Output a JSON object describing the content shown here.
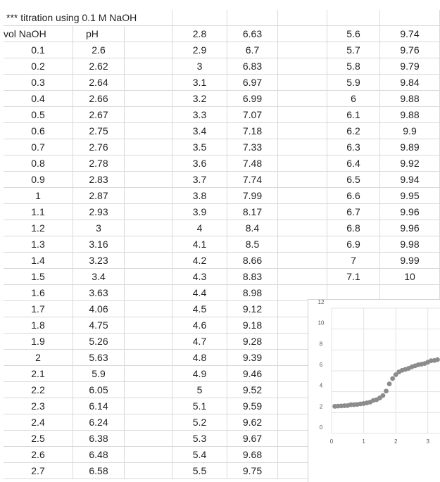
{
  "sheet": {
    "title": "*** titration using 0.1 M NaOH",
    "headers": {
      "vol": "vol NaOH",
      "ph": "pH"
    },
    "block1": [
      [
        "0.1",
        "2.6"
      ],
      [
        "0.2",
        "2.62"
      ],
      [
        "0.3",
        "2.64"
      ],
      [
        "0.4",
        "2.66"
      ],
      [
        "0.5",
        "2.67"
      ],
      [
        "0.6",
        "2.75"
      ],
      [
        "0.7",
        "2.76"
      ],
      [
        "0.8",
        "2.78"
      ],
      [
        "0.9",
        "2.83"
      ],
      [
        "1",
        "2.87"
      ],
      [
        "1.1",
        "2.93"
      ],
      [
        "1.2",
        "3"
      ],
      [
        "1.3",
        "3.16"
      ],
      [
        "1.4",
        "3.23"
      ],
      [
        "1.5",
        "3.4"
      ],
      [
        "1.6",
        "3.63"
      ],
      [
        "1.7",
        "4.06"
      ],
      [
        "1.8",
        "4.75"
      ],
      [
        "1.9",
        "5.26"
      ],
      [
        "2",
        "5.63"
      ],
      [
        "2.1",
        "5.9"
      ],
      [
        "2.2",
        "6.05"
      ],
      [
        "2.3",
        "6.14"
      ],
      [
        "2.4",
        "6.24"
      ],
      [
        "2.5",
        "6.38"
      ],
      [
        "2.6",
        "6.48"
      ],
      [
        "2.7",
        "6.58"
      ]
    ],
    "block2": [
      [
        "2.8",
        "6.63"
      ],
      [
        "2.9",
        "6.7"
      ],
      [
        "3",
        "6.83"
      ],
      [
        "3.1",
        "6.97"
      ],
      [
        "3.2",
        "6.99"
      ],
      [
        "3.3",
        "7.07"
      ],
      [
        "3.4",
        "7.18"
      ],
      [
        "3.5",
        "7.33"
      ],
      [
        "3.6",
        "7.48"
      ],
      [
        "3.7",
        "7.74"
      ],
      [
        "3.8",
        "7.99"
      ],
      [
        "3.9",
        "8.17"
      ],
      [
        "4",
        "8.4"
      ],
      [
        "4.1",
        "8.5"
      ],
      [
        "4.2",
        "8.66"
      ],
      [
        "4.3",
        "8.83"
      ],
      [
        "4.4",
        "8.98"
      ],
      [
        "4.5",
        "9.12"
      ],
      [
        "4.6",
        "9.18"
      ],
      [
        "4.7",
        "9.28"
      ],
      [
        "4.8",
        "9.39"
      ],
      [
        "4.9",
        "9.46"
      ],
      [
        "5",
        "9.52"
      ],
      [
        "5.1",
        "9.59"
      ],
      [
        "5.2",
        "9.62"
      ],
      [
        "5.3",
        "9.67"
      ],
      [
        "5.4",
        "9.68"
      ],
      [
        "5.5",
        "9.75"
      ]
    ],
    "block3": [
      [
        "5.6",
        "9.74"
      ],
      [
        "5.7",
        "9.76"
      ],
      [
        "5.8",
        "9.79"
      ],
      [
        "5.9",
        "9.84"
      ],
      [
        "6",
        "9.88"
      ],
      [
        "6.1",
        "9.88"
      ],
      [
        "6.2",
        "9.9"
      ],
      [
        "6.3",
        "9.89"
      ],
      [
        "6.4",
        "9.92"
      ],
      [
        "6.5",
        "9.94"
      ],
      [
        "6.6",
        "9.95"
      ],
      [
        "6.7",
        "9.96"
      ],
      [
        "6.8",
        "9.96"
      ],
      [
        "6.9",
        "9.98"
      ],
      [
        "7",
        "9.99"
      ],
      [
        "7.1",
        "10"
      ]
    ]
  },
  "chart_data": {
    "type": "scatter",
    "title": "",
    "xlabel": "",
    "ylabel": "",
    "xlim": [
      0,
      3.4
    ],
    "ylim": [
      0,
      12
    ],
    "x_ticks": [
      "0",
      "1",
      "2",
      "3"
    ],
    "y_ticks": [
      "0",
      "2",
      "4",
      "6",
      "8",
      "10",
      "12"
    ],
    "grid": true,
    "marker_color": "#8c8c8c",
    "series": [
      {
        "x": [
          0.1,
          0.2,
          0.3,
          0.4,
          0.5,
          0.6,
          0.7,
          0.8,
          0.9,
          1,
          1.1,
          1.2,
          1.3,
          1.4,
          1.5,
          1.6,
          1.7,
          1.8,
          1.9,
          2,
          2.1,
          2.2,
          2.3,
          2.4,
          2.5,
          2.6,
          2.7,
          2.8,
          2.9,
          3,
          3.1,
          3.2,
          3.3
        ],
        "y": [
          2.6,
          2.62,
          2.64,
          2.66,
          2.67,
          2.75,
          2.76,
          2.78,
          2.83,
          2.87,
          2.93,
          3,
          3.16,
          3.23,
          3.4,
          3.63,
          4.06,
          4.75,
          5.26,
          5.63,
          5.9,
          6.05,
          6.14,
          6.24,
          6.38,
          6.48,
          6.58,
          6.63,
          6.7,
          6.83,
          6.97,
          6.99,
          7.07
        ]
      }
    ]
  }
}
